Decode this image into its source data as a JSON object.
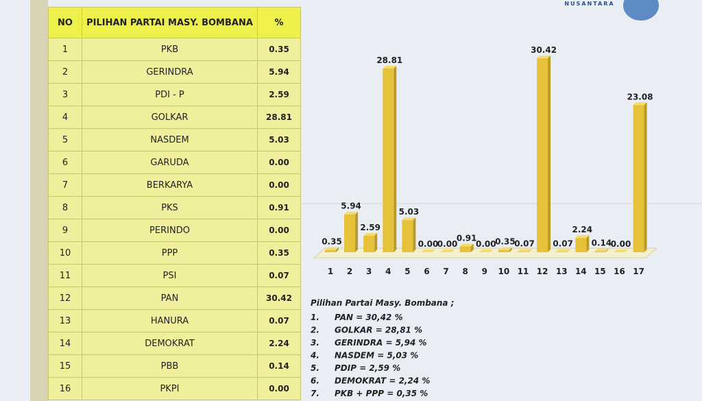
{
  "table": {
    "header": [
      "NO",
      "PILIHAN PARTAI MASY. BOMBANA",
      "%"
    ],
    "rows": [
      [
        "1",
        "PKB",
        "0.35"
      ],
      [
        "2",
        "GERINDRA",
        "5.94"
      ],
      [
        "3",
        "PDI - P",
        "2.59"
      ],
      [
        "4",
        "GOLKAR",
        "28.81"
      ],
      [
        "5",
        "NASDEM",
        "5.03"
      ],
      [
        "6",
        "GARUDA",
        "0.00"
      ],
      [
        "7",
        "BERKARYA",
        "0.00"
      ],
      [
        "8",
        "PKS",
        "0.91"
      ],
      [
        "9",
        "PERINDO",
        "0.00"
      ],
      [
        "10",
        "PPP",
        "0.35"
      ],
      [
        "11",
        "PSI",
        "0.07"
      ],
      [
        "12",
        "PAN",
        "30.42"
      ],
      [
        "13",
        "HANURA",
        "0.07"
      ],
      [
        "14",
        "DEMOKRAT",
        "2.24"
      ],
      [
        "15",
        "PBB",
        "0.14"
      ],
      [
        "16",
        "PKPI",
        "0.00"
      ]
    ]
  },
  "chart_data": {
    "type": "bar",
    "color": "#e6c23a",
    "categories": [
      "1",
      "2",
      "3",
      "4",
      "5",
      "6",
      "7",
      "8",
      "9",
      "10",
      "11",
      "12",
      "13",
      "14",
      "15",
      "16",
      "17"
    ],
    "values": [
      0.35,
      5.94,
      2.59,
      28.81,
      5.03,
      0,
      0,
      0.91,
      0,
      0.35,
      0.07,
      30.42,
      0.07,
      2.24,
      0.14,
      0,
      23.08
    ],
    "value_labels": [
      "0.35",
      "5.94",
      "2.59",
      "28.81",
      "5.03",
      "0.00",
      "0.00",
      "0.91",
      "0.00",
      "0.35",
      "0.07",
      "30.42",
      "0.07",
      "2.24",
      "0.14",
      "0.00",
      "23.08"
    ]
  },
  "notes": {
    "title": "Pilihan Partai Masy. Bombana ;",
    "items": [
      {
        "number": "1.",
        "text": "PAN = 30,42 %"
      },
      {
        "number": "2.",
        "text": "GOLKAR = 28,81 %"
      },
      {
        "number": "3.",
        "text": "GERINDRA = 5,94 %"
      },
      {
        "number": "4.",
        "text": "NASDEM = 5,03 %"
      },
      {
        "number": "5.",
        "text": "PDIP = 2,59 %"
      },
      {
        "number": "6.",
        "text": "DEMOKRAT = 2,24 %"
      },
      {
        "number": "7.",
        "text": "PKB + PPP = 0,35 %"
      }
    ]
  },
  "logo": "NUSANTARA"
}
